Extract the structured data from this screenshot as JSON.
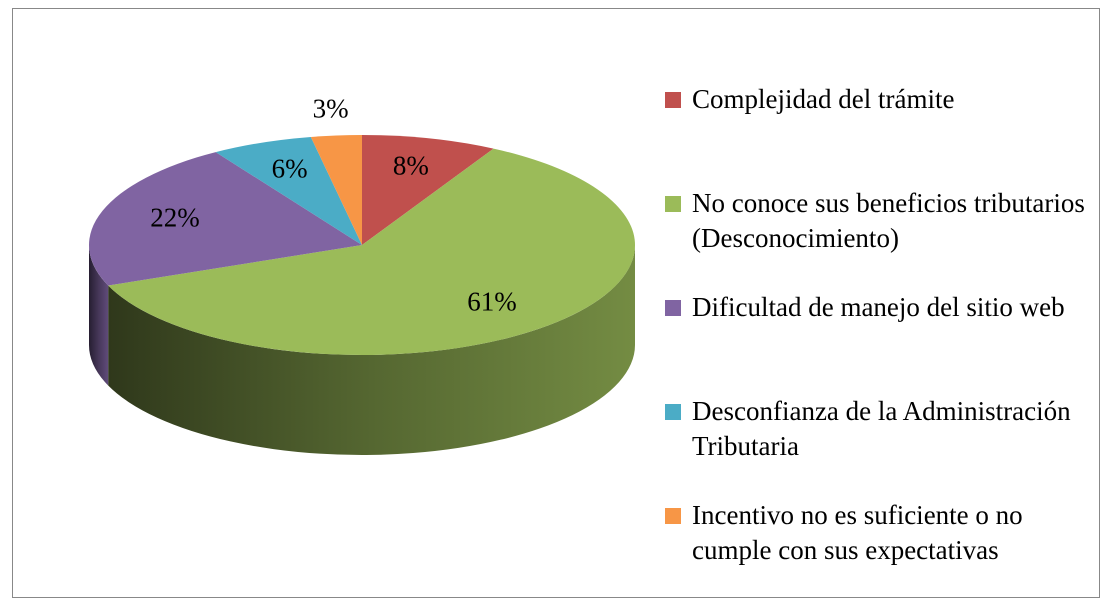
{
  "chart_data": {
    "type": "pie",
    "categories": [
      "Complejidad del trámite",
      "No conoce sus beneficios tributarios (Desconocimiento)",
      "Dificultad de manejo del sitio web",
      "Desconfianza de la Administración Tributaria",
      "Incentivo no es suficiente o no cumple con sus expectativas"
    ],
    "values": [
      8,
      61,
      22,
      6,
      3
    ],
    "value_labels": [
      "8%",
      "61%",
      "22%",
      "6%",
      "3%"
    ],
    "colors": [
      "#c0504d",
      "#9bbb59",
      "#8064a2",
      "#4bacc6",
      "#f79646"
    ],
    "legend": "right"
  }
}
